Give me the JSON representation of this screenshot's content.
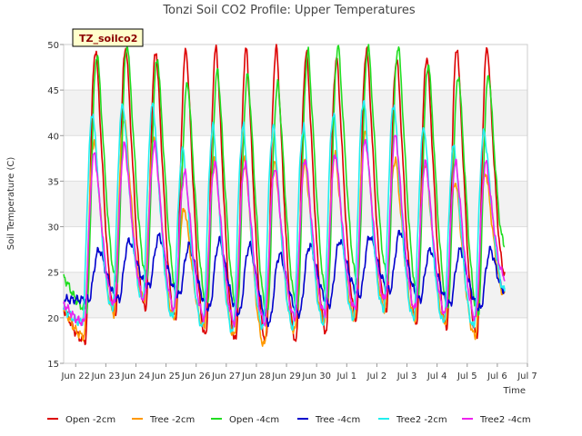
{
  "chart_data": {
    "type": "line",
    "title": "Tonzi Soil CO2 Profile: Upper Temperatures",
    "xlabel": "Time",
    "ylabel": "Soil Temperature (C)",
    "site_label": "TZ_soilco2",
    "xlim": [
      21.6,
      37.0
    ],
    "ylim": [
      15,
      50
    ],
    "yticks": [
      15,
      20,
      25,
      30,
      35,
      40,
      45,
      50
    ],
    "xticks": [
      {
        "day": 22,
        "label": "Jun 22"
      },
      {
        "day": 23,
        "label": "Jun 23"
      },
      {
        "day": 24,
        "label": "Jun 24"
      },
      {
        "day": 25,
        "label": "Jun 25"
      },
      {
        "day": 26,
        "label": "Jun 26"
      },
      {
        "day": 27,
        "label": "Jun 27"
      },
      {
        "day": 28,
        "label": "Jun 28"
      },
      {
        "day": 29,
        "label": "Jun 29"
      },
      {
        "day": 30,
        "label": "Jun 30"
      },
      {
        "day": 31,
        "label": "Jul 1"
      },
      {
        "day": 32,
        "label": "Jul 2"
      },
      {
        "day": 33,
        "label": "Jul 3"
      },
      {
        "day": 34,
        "label": "Jul 4"
      },
      {
        "day": 35,
        "label": "Jul 5"
      },
      {
        "day": 36,
        "label": "Jul 6"
      },
      {
        "day": 37,
        "label": "Jul 7"
      }
    ],
    "x_start": 21.6,
    "x_end": 36.25,
    "peak_days": [
      22.58,
      23.58,
      24.58,
      25.58,
      26.58,
      27.58,
      28.58,
      29.58,
      30.58,
      31.58,
      32.58,
      33.58,
      34.58,
      35.58
    ],
    "grid": true,
    "legend_position": "bottom",
    "series": [
      {
        "name": "Open -2cm",
        "color": "#dd0000",
        "start_value": 21.0,
        "phase": 0.1,
        "mins": [
          17.5,
          20.5,
          21.0,
          20.0,
          18.0,
          17.5,
          17.5,
          17.5,
          18.5,
          20.0,
          21.0,
          19.5,
          19.0,
          18.0
        ],
        "maxs": [
          49.5,
          49.8,
          49.3,
          49.5,
          49.7,
          49.5,
          49.6,
          49.0,
          48.5,
          49.6,
          48.5,
          48.7,
          49.7,
          49.7
        ],
        "end_value": 25.0
      },
      {
        "name": "Tree -2cm",
        "color": "#ff9900",
        "start_value": 21.0,
        "phase": 0.05,
        "mins": [
          18.0,
          20.5,
          22.0,
          20.0,
          19.0,
          18.0,
          17.0,
          18.5,
          19.5,
          20.0,
          21.0,
          20.0,
          19.5,
          18.0
        ],
        "maxs": [
          39.5,
          42.0,
          40.0,
          32.0,
          37.5,
          37.5,
          37.0,
          37.0,
          38.0,
          40.5,
          37.5,
          37.0,
          35.0,
          36.0
        ],
        "end_value": 22.5
      },
      {
        "name": "Open -4cm",
        "color": "#22dd22",
        "start_value": 24.5,
        "phase": 0.15,
        "mins": [
          21.0,
          24.0,
          24.5,
          23.0,
          21.5,
          21.0,
          20.5,
          21.0,
          22.0,
          24.0,
          24.5,
          22.5,
          21.5,
          20.5
        ],
        "maxs": [
          49.0,
          50.0,
          48.5,
          45.8,
          47.2,
          46.7,
          45.7,
          49.2,
          49.8,
          49.8,
          49.9,
          48.0,
          46.6,
          46.7
        ],
        "end_value": 28.0
      },
      {
        "name": "Tree -4cm",
        "color": "#0000cc",
        "start_value": 22.0,
        "phase": 0.22,
        "mins": [
          22.0,
          22.0,
          23.5,
          22.5,
          21.0,
          20.5,
          19.5,
          20.5,
          21.5,
          22.5,
          23.0,
          22.0,
          21.5,
          21.0
        ],
        "maxs": [
          27.5,
          28.5,
          29.0,
          28.0,
          28.5,
          28.0,
          27.0,
          28.0,
          28.5,
          29.0,
          29.5,
          27.5,
          27.5,
          27.5
        ],
        "end_value": 23.0
      },
      {
        "name": "Tree2 -2cm",
        "color": "#22eeee",
        "start_value": 21.0,
        "phase": 0.0,
        "mins": [
          19.5,
          21.0,
          22.0,
          20.0,
          19.0,
          18.5,
          19.0,
          19.0,
          19.5,
          20.0,
          21.0,
          20.0,
          19.5,
          19.0
        ],
        "maxs": [
          42.5,
          43.5,
          43.5,
          38.5,
          41.0,
          41.0,
          41.0,
          41.0,
          42.5,
          44.0,
          43.5,
          41.0,
          39.0,
          40.5
        ],
        "end_value": 23.0
      },
      {
        "name": "Tree2 -4cm",
        "color": "#ee22ee",
        "start_value": 21.5,
        "phase": 0.06,
        "mins": [
          19.5,
          21.5,
          22.0,
          21.0,
          20.0,
          19.5,
          19.5,
          20.0,
          20.5,
          21.0,
          22.0,
          21.0,
          20.5,
          20.0
        ],
        "maxs": [
          38.0,
          39.0,
          39.0,
          36.0,
          37.0,
          37.0,
          36.5,
          37.5,
          38.0,
          39.5,
          40.0,
          37.0,
          37.0,
          37.0
        ],
        "end_value": 24.5
      }
    ]
  }
}
